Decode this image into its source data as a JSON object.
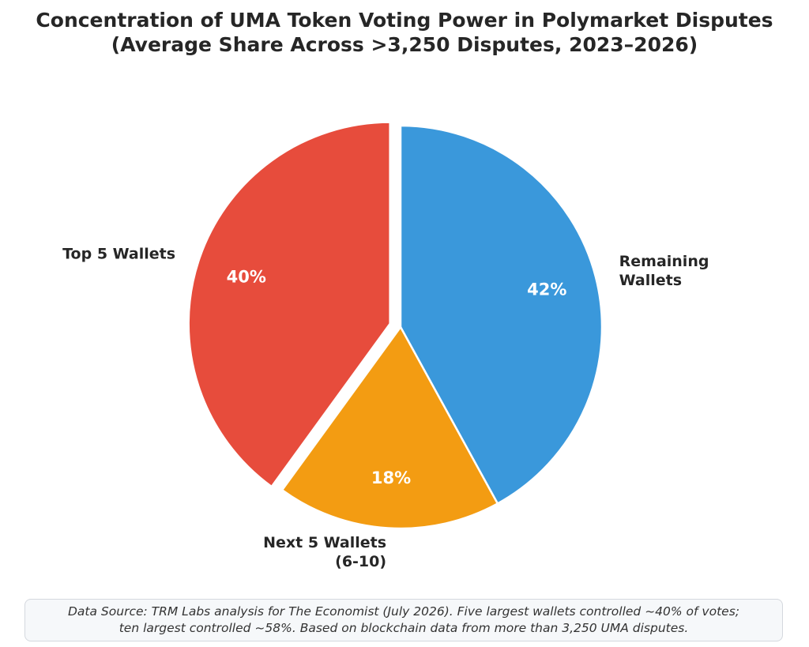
{
  "chart_data": {
    "type": "pie",
    "title": [
      "Concentration of UMA Token Voting Power in Polymarket Disputes",
      "(Average Share Across >3,250 Disputes, 2023–2026)"
    ],
    "slices": [
      {
        "label": "Remaining Wallets",
        "label_lines": [
          "Remaining",
          "Wallets"
        ],
        "value": 42,
        "pct_label": "42%",
        "color": "#3a98db",
        "exploded": false
      },
      {
        "label": "Next 5 Wallets (6-10)",
        "label_lines": [
          "Next 5 Wallets",
          "(6-10)"
        ],
        "value": 18,
        "pct_label": "18%",
        "color": "#f39c12",
        "exploded": false
      },
      {
        "label": "Top 5 Wallets",
        "label_lines": [
          "Top 5 Wallets"
        ],
        "value": 40,
        "pct_label": "40%",
        "color": "#e74c3c",
        "exploded": true
      }
    ],
    "start_angle": "12 o'clock",
    "direction": "clockwise",
    "legend": "none"
  },
  "source_note": [
    "Data Source: TRM Labs analysis for The Economist (July 2026). Five largest wallets controlled ~40% of votes;",
    "ten largest controlled ~58%. Based on blockchain data from more than 3,250 UMA disputes."
  ]
}
